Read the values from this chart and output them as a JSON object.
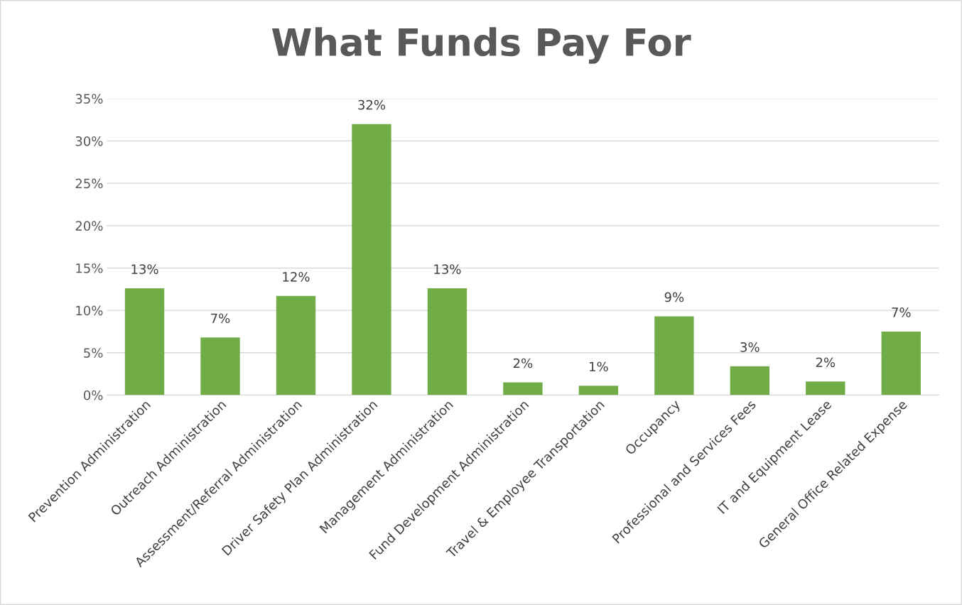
{
  "chart_data": {
    "type": "bar",
    "title": "What Funds Pay For",
    "categories": [
      "Prevention Administration",
      "Outreach Administration",
      "Assessment/Referral Administration",
      "Driver Safety Plan Administration",
      "Management Administration",
      "Fund Development Administration",
      "Travel & Employee Transportation",
      "Occupancy",
      "Professional and Services Fees",
      "IT and Equipment Lease",
      "General Office Related Expense"
    ],
    "values": [
      12.6,
      6.8,
      11.7,
      32.0,
      12.6,
      1.5,
      1.1,
      9.3,
      3.4,
      1.6,
      7.5
    ],
    "value_labels": [
      "13%",
      "7%",
      "12%",
      "32%",
      "13%",
      "2%",
      "1%",
      "9%",
      "3%",
      "2%",
      "7%"
    ],
    "color": "#70ad47",
    "ylim": [
      0,
      35
    ],
    "yticks": [
      {
        "value": 0,
        "label": "0%"
      },
      {
        "value": 5,
        "label": "5%"
      },
      {
        "value": 10,
        "label": "10%"
      },
      {
        "value": 15,
        "label": "15%"
      },
      {
        "value": 20,
        "label": "20%"
      },
      {
        "value": 25,
        "label": "25%"
      },
      {
        "value": 30,
        "label": "30%"
      },
      {
        "value": 35,
        "label": "35%"
      }
    ],
    "grid": "y"
  }
}
